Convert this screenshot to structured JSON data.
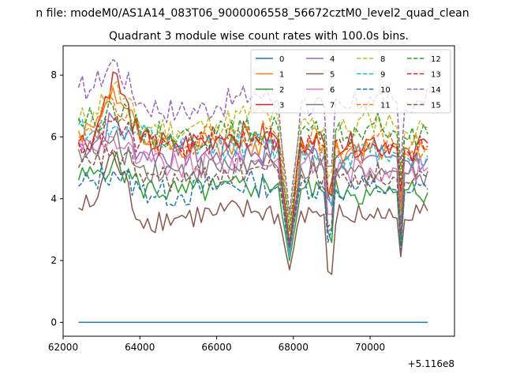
{
  "figure": {
    "suptitle": "n file: modeM0/AS1A14_083T06_9000006558_56672cztM0_level2_quad_clean",
    "title": "Quadrant 3 module wise count rates with 100.0s bins.",
    "offset_label": "+5.116e8"
  },
  "chart_data": {
    "type": "line",
    "title": "Quadrant 3 module wise count rates with 100.0s bins.",
    "xlabel": "",
    "ylabel": "",
    "x_offset": 511600000,
    "xlim": [
      62000,
      72200
    ],
    "ylim": [
      -0.45,
      8.95
    ],
    "xticks": [
      62000,
      64000,
      66000,
      68000,
      70000
    ],
    "xtick_labels": [
      "62000",
      "64000",
      "66000",
      "68000",
      "70000"
    ],
    "yticks": [
      0,
      2,
      4,
      6,
      8
    ],
    "ytick_labels": [
      "0",
      "2",
      "4",
      "6",
      "8"
    ],
    "legend_position": "top-right",
    "legend_columns": 4,
    "dip_times": [
      67920,
      68950,
      70800
    ],
    "series": [
      {
        "name": "0",
        "color": "#1f77b4",
        "dash": "solid",
        "x": [
          62400,
          71500
        ],
        "values": [
          0.0,
          0.0
        ]
      },
      {
        "name": "1",
        "color": "#ff7f0e",
        "dash": "solid",
        "x": [
          62400,
          62800,
          63300,
          64000,
          65000,
          66000,
          67000,
          67600,
          67900,
          68200,
          68800,
          69400,
          70000,
          70600,
          71000,
          71500
        ],
        "values": [
          6.2,
          6.3,
          7.6,
          6.0,
          5.6,
          5.8,
          5.8,
          5.9,
          2.2,
          5.8,
          5.7,
          5.5,
          5.6,
          5.7,
          5.4,
          5.6
        ]
      },
      {
        "name": "2",
        "color": "#2ca02c",
        "dash": "solid",
        "x": [
          62400,
          62800,
          63300,
          64000,
          65000,
          66000,
          67000,
          67600,
          67900,
          68200,
          68800,
          69400,
          70000,
          70600,
          71000,
          71500
        ],
        "values": [
          4.6,
          4.8,
          5.2,
          4.4,
          4.2,
          4.3,
          4.4,
          4.5,
          2.0,
          4.3,
          4.2,
          4.3,
          4.1,
          4.2,
          4.3,
          4.2
        ]
      },
      {
        "name": "3",
        "color": "#d62728",
        "dash": "solid",
        "x": [
          62400,
          62800,
          63300,
          64000,
          65000,
          66000,
          67000,
          67600,
          67900,
          68200,
          68800,
          69400,
          70000,
          70600,
          71000,
          71500
        ],
        "values": [
          5.8,
          6.0,
          8.1,
          5.9,
          5.7,
          6.0,
          6.1,
          5.9,
          2.4,
          6.0,
          5.8,
          5.7,
          5.9,
          5.8,
          5.6,
          5.8
        ]
      },
      {
        "name": "4",
        "color": "#9467bd",
        "dash": "solid",
        "x": [
          62400,
          62800,
          63300,
          64000,
          65000,
          66000,
          67000,
          67600,
          67900,
          68200,
          68800,
          69400,
          70000,
          70600,
          71000,
          71500
        ],
        "values": [
          5.7,
          5.8,
          6.6,
          5.5,
          5.4,
          5.5,
          5.5,
          5.6,
          2.3,
          5.5,
          5.4,
          5.3,
          5.4,
          5.4,
          5.2,
          5.3
        ]
      },
      {
        "name": "5",
        "color": "#8c564b",
        "dash": "solid",
        "x": [
          62400,
          62800,
          63300,
          64000,
          65000,
          66000,
          67000,
          67600,
          67900,
          68200,
          68800,
          69400,
          70000,
          70600,
          71000,
          71500
        ],
        "values": [
          3.7,
          3.8,
          5.5,
          3.3,
          3.4,
          3.5,
          3.6,
          3.5,
          1.7,
          3.6,
          3.5,
          3.4,
          3.5,
          3.4,
          3.3,
          3.6
        ]
      },
      {
        "name": "6",
        "color": "#e377c2",
        "dash": "solid",
        "x": [
          62400,
          62800,
          63300,
          64000,
          65000,
          66000,
          67000,
          67600,
          67900,
          68200,
          68800,
          69400,
          70000,
          70600,
          71000,
          71500
        ],
        "values": [
          5.9,
          5.6,
          6.0,
          5.2,
          5.0,
          5.1,
          5.2,
          5.3,
          2.1,
          5.1,
          5.0,
          4.9,
          5.0,
          5.0,
          4.8,
          5.0
        ]
      },
      {
        "name": "7",
        "color": "#7f7f7f",
        "dash": "solid",
        "x": [
          62400,
          62800,
          63300,
          64000,
          65000,
          66000,
          67000,
          67600,
          67900,
          68200,
          68800,
          69400,
          70000,
          70600,
          71000,
          71500
        ],
        "values": [
          5.6,
          5.5,
          5.9,
          5.0,
          4.9,
          5.0,
          5.1,
          5.0,
          2.3,
          5.0,
          4.9,
          4.8,
          4.9,
          4.9,
          4.8,
          4.9
        ]
      },
      {
        "name": "8",
        "color": "#bcbd22",
        "dash": "dashed",
        "x": [
          62400,
          62800,
          63300,
          64000,
          65000,
          66000,
          67000,
          67600,
          67900,
          68200,
          68800,
          69400,
          70000,
          70600,
          71000,
          71500
        ],
        "values": [
          6.5,
          6.8,
          7.7,
          6.4,
          6.2,
          6.4,
          6.8,
          6.6,
          3.3,
          6.5,
          6.3,
          6.2,
          6.6,
          6.4,
          6.1,
          6.3
        ]
      },
      {
        "name": "9",
        "color": "#17becf",
        "dash": "dashed",
        "x": [
          62400,
          62800,
          63300,
          64000,
          65000,
          66000,
          67000,
          67600,
          67900,
          68200,
          68800,
          69400,
          70000,
          70600,
          71000,
          71500
        ],
        "values": [
          6.4,
          6.2,
          6.3,
          6.0,
          5.6,
          5.7,
          5.8,
          5.6,
          2.1,
          5.6,
          5.5,
          5.4,
          5.5,
          5.5,
          5.3,
          5.4
        ]
      },
      {
        "name": "10",
        "color": "#1f77b4",
        "dash": "dashed",
        "x": [
          62400,
          62800,
          63300,
          64000,
          65000,
          66000,
          67000,
          67600,
          67900,
          68200,
          68800,
          69400,
          70000,
          70600,
          71000,
          71500
        ],
        "values": [
          4.4,
          4.6,
          4.9,
          4.3,
          4.1,
          4.4,
          4.5,
          4.4,
          2.4,
          4.5,
          4.3,
          4.3,
          4.4,
          4.3,
          4.2,
          4.3
        ]
      },
      {
        "name": "11",
        "color": "#ff7f0e",
        "dash": "dashed",
        "x": [
          62400,
          62800,
          63300,
          64000,
          65000,
          66000,
          67000,
          67600,
          67900,
          68200,
          68800,
          69400,
          70000,
          70600,
          71000,
          71500
        ],
        "values": [
          6.0,
          6.1,
          7.2,
          5.9,
          5.7,
          6.0,
          6.1,
          6.0,
          2.8,
          5.9,
          5.8,
          5.7,
          5.9,
          5.8,
          5.6,
          5.7
        ]
      },
      {
        "name": "12",
        "color": "#2ca02c",
        "dash": "dashed",
        "x": [
          62400,
          62800,
          63300,
          64000,
          65000,
          66000,
          67000,
          67600,
          67900,
          68200,
          68800,
          69400,
          70000,
          70600,
          71000,
          71500
        ],
        "values": [
          6.6,
          6.5,
          7.0,
          6.2,
          6.0,
          6.1,
          6.2,
          6.3,
          3.0,
          6.2,
          6.1,
          6.0,
          6.4,
          6.2,
          5.9,
          6.1
        ]
      },
      {
        "name": "13",
        "color": "#d62728",
        "dash": "dashed",
        "x": [
          62400,
          62800,
          63300,
          64000,
          65000,
          66000,
          67000,
          67600,
          67900,
          68200,
          68800,
          69400,
          70000,
          70600,
          71000,
          71500
        ],
        "values": [
          5.8,
          5.9,
          6.5,
          5.8,
          5.7,
          5.9,
          6.0,
          5.9,
          2.5,
          5.8,
          5.7,
          5.6,
          5.8,
          5.7,
          5.5,
          5.7
        ]
      },
      {
        "name": "14",
        "color": "#9467bd",
        "dash": "dashed",
        "x": [
          62400,
          62800,
          63300,
          64000,
          65000,
          66000,
          67000,
          67600,
          67900,
          68200,
          68800,
          69400,
          70000,
          70600,
          71000,
          71500
        ],
        "values": [
          7.6,
          7.6,
          8.5,
          7.1,
          6.8,
          7.0,
          7.4,
          7.2,
          3.5,
          7.1,
          7.0,
          6.9,
          7.3,
          7.2,
          6.8,
          7.6
        ]
      },
      {
        "name": "15",
        "color": "#8c564b",
        "dash": "dashed",
        "x": [
          62400,
          62800,
          63300,
          64000,
          65000,
          66000,
          67000,
          67600,
          67900,
          68200,
          68800,
          69400,
          70000,
          70600,
          71000,
          71500
        ],
        "values": [
          5.0,
          5.1,
          5.6,
          4.8,
          4.6,
          4.8,
          5.0,
          4.9,
          2.6,
          4.8,
          4.7,
          4.6,
          4.8,
          4.7,
          4.5,
          4.7
        ]
      }
    ]
  }
}
